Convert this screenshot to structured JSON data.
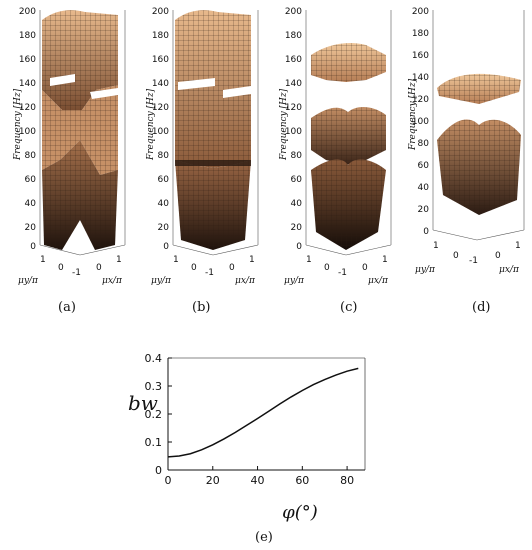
{
  "figure": {
    "panels": [
      {
        "id": "a",
        "label": "(a)",
        "ylabel": "Frequency [Hz]",
        "ticks": [
          "0",
          "20",
          "40",
          "60",
          "80",
          "100",
          "120",
          "140",
          "160",
          "180",
          "200"
        ],
        "mu_y_label": "μy/π",
        "mu_x_label": "μx/π",
        "mu_y_ticks": [
          "1",
          "0"
        ],
        "mu_x_ticks": [
          "-1",
          "0",
          "1"
        ]
      },
      {
        "id": "b",
        "label": "(b)",
        "ylabel": "Frequency [Hz]",
        "ticks": [
          "0",
          "20",
          "40",
          "60",
          "80",
          "100",
          "120",
          "140",
          "160",
          "180",
          "200"
        ],
        "mu_y_label": "μy/π",
        "mu_x_label": "μx/π",
        "mu_y_ticks": [
          "1",
          "0"
        ],
        "mu_x_ticks": [
          "-1",
          "0",
          "1"
        ]
      },
      {
        "id": "c",
        "label": "(c)",
        "ylabel": "Frequency [Hz]",
        "ticks": [
          "0",
          "20",
          "40",
          "60",
          "80",
          "100",
          "120",
          "140",
          "160",
          "180",
          "200"
        ],
        "mu_y_label": "μy/π",
        "mu_x_label": "μx/π",
        "mu_y_ticks": [
          "1",
          "0"
        ],
        "mu_x_ticks": [
          "-1",
          "0",
          "1"
        ]
      },
      {
        "id": "d",
        "label": "(d)",
        "ylabel": "Frequency [Hz]",
        "ticks": [
          "0",
          "20",
          "40",
          "60",
          "80",
          "100",
          "120",
          "140",
          "160",
          "180",
          "200"
        ],
        "mu_y_label": "μy/π",
        "mu_x_label": "μx/π",
        "mu_y_ticks": [
          "1",
          "0"
        ],
        "mu_x_ticks": [
          "-1",
          "0",
          "1"
        ]
      }
    ],
    "panel_e_label": "(e)"
  },
  "chart_data": {
    "type": "line",
    "xlabel": "φ(°)",
    "ylabel": "bw",
    "x_ticks": [
      "0",
      "20",
      "40",
      "60",
      "80"
    ],
    "y_ticks": [
      "0",
      "0.1",
      "0.2",
      "0.3",
      "0.4"
    ],
    "xlim": [
      0,
      88
    ],
    "ylim": [
      0,
      0.4
    ],
    "series": [
      {
        "x": [
          0,
          5,
          10,
          15,
          20,
          25,
          30,
          35,
          40,
          45,
          50,
          55,
          60,
          65,
          70,
          75,
          80,
          85
        ],
        "y": [
          0.047,
          0.05,
          0.058,
          0.072,
          0.09,
          0.111,
          0.134,
          0.159,
          0.184,
          0.21,
          0.236,
          0.261,
          0.284,
          0.305,
          0.323,
          0.339,
          0.353,
          0.363
        ]
      }
    ]
  },
  "colors": {
    "surface_light": "#e0ad82",
    "surface_dark": "#3a241a",
    "line": "#111111"
  }
}
